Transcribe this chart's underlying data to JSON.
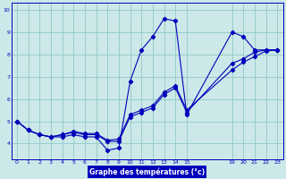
{
  "xlabel": "Graphe des températures (°c)",
  "background_color": "#cce8e8",
  "line_color": "#0000bb",
  "grid_color": "#99cccc",
  "xlabel_bg": "#0000bb",
  "xlabel_fg": "#ffffff",
  "xlim_min": -0.5,
  "xlim_max": 23.5,
  "ylim_min": 3.3,
  "ylim_max": 10.3,
  "yticks": [
    4,
    5,
    6,
    7,
    8,
    9,
    10
  ],
  "xticks": [
    0,
    1,
    2,
    3,
    4,
    5,
    6,
    7,
    8,
    9,
    10,
    11,
    12,
    13,
    14,
    15,
    19,
    20,
    21,
    22,
    23
  ],
  "series": [
    {
      "x": [
        0,
        1,
        2,
        3,
        4,
        5,
        6,
        7,
        8,
        9,
        10,
        11,
        12,
        13,
        14,
        15,
        19,
        20,
        21,
        22,
        23
      ],
      "y": [
        5.0,
        4.6,
        4.4,
        4.3,
        4.3,
        4.4,
        4.3,
        4.3,
        3.7,
        3.8,
        6.8,
        8.2,
        8.8,
        9.6,
        9.5,
        5.3,
        9.0,
        8.8,
        8.2,
        8.2,
        8.2
      ]
    },
    {
      "x": [
        0,
        1,
        2,
        3,
        4,
        5,
        6,
        7,
        8,
        9,
        10,
        11,
        12,
        13,
        14,
        15,
        19,
        20,
        21,
        22,
        23
      ],
      "y": [
        5.0,
        4.6,
        4.4,
        4.3,
        4.4,
        4.5,
        4.4,
        4.4,
        4.1,
        4.1,
        5.2,
        5.4,
        5.6,
        6.2,
        6.5,
        5.4,
        7.6,
        7.8,
        8.1,
        8.2,
        8.2
      ]
    },
    {
      "x": [
        0,
        1,
        2,
        3,
        4,
        5,
        6,
        7,
        8,
        9,
        10,
        11,
        12,
        13,
        14,
        15,
        19,
        20,
        21,
        22,
        23
      ],
      "y": [
        5.0,
        4.6,
        4.4,
        4.3,
        4.4,
        4.55,
        4.45,
        4.45,
        4.15,
        4.2,
        5.3,
        5.5,
        5.7,
        6.3,
        6.6,
        5.5,
        7.3,
        7.65,
        7.9,
        8.15,
        8.2
      ]
    }
  ]
}
